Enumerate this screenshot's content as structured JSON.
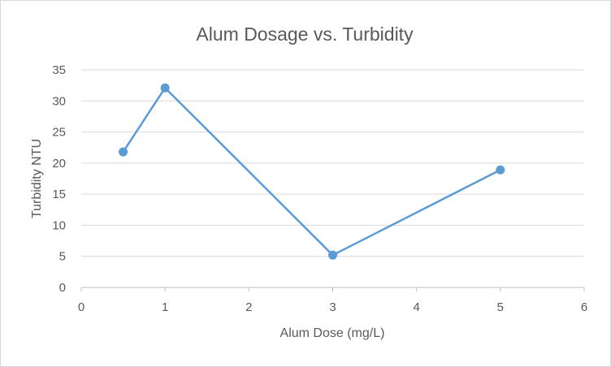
{
  "chart_data": {
    "type": "scatter",
    "title": "Alum Dosage vs. Turbidity",
    "xlabel": "Alum Dose (mg/L)",
    "ylabel": "Turbidity NTU",
    "xlim": [
      0,
      6
    ],
    "ylim": [
      0,
      35
    ],
    "xticks": [
      0,
      1,
      2,
      3,
      4,
      5,
      6
    ],
    "yticks": [
      0,
      5,
      10,
      15,
      20,
      25,
      30,
      35
    ],
    "grid": "horizontal",
    "legend": "none",
    "lines": true,
    "series": [
      {
        "color": "#5b9bd5",
        "points": [
          {
            "x": 0.5,
            "y": 21.8
          },
          {
            "x": 1,
            "y": 32.1
          },
          {
            "x": 3,
            "y": 5.2
          },
          {
            "x": 5,
            "y": 18.9
          }
        ]
      }
    ]
  }
}
